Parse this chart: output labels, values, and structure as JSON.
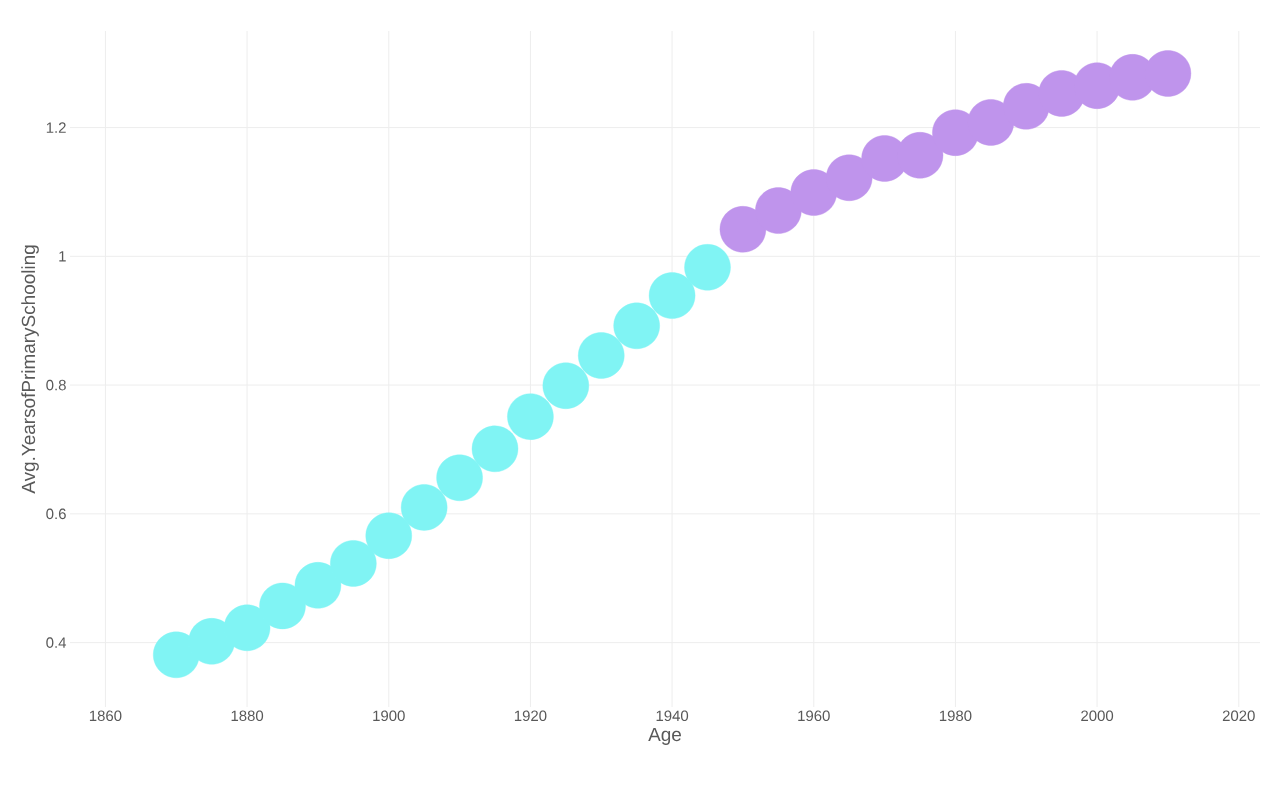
{
  "chart_data": {
    "type": "scatter",
    "xlabel": "Age",
    "ylabel": "Avg.YearsofPrimarySchooling",
    "xlim": [
      1855,
      2023
    ],
    "ylim": [
      0.3,
      1.35
    ],
    "xticks": [
      1860,
      1880,
      1900,
      1920,
      1940,
      1960,
      1980,
      2000,
      2020
    ],
    "yticks": [
      0.4,
      0.6,
      0.8,
      1,
      1.2
    ],
    "grid": true,
    "series": [
      {
        "color": "#80f4f4",
        "x": [
          1870,
          1875,
          1880,
          1885,
          1890,
          1895,
          1900,
          1905,
          1910,
          1915,
          1920,
          1925,
          1930,
          1935,
          1940,
          1945
        ],
        "values": [
          0.381,
          0.402,
          0.423,
          0.457,
          0.489,
          0.523,
          0.566,
          0.61,
          0.656,
          0.701,
          0.751,
          0.799,
          0.846,
          0.892,
          0.939,
          0.983
        ]
      },
      {
        "color": "#bf94ec",
        "x": [
          1950,
          1955,
          1960,
          1965,
          1970,
          1975,
          1980,
          1985,
          1990,
          1995,
          2000,
          2005,
          2010
        ],
        "values": [
          1.042,
          1.071,
          1.099,
          1.122,
          1.152,
          1.157,
          1.192,
          1.208,
          1.233,
          1.253,
          1.265,
          1.278,
          1.284
        ]
      }
    ]
  }
}
